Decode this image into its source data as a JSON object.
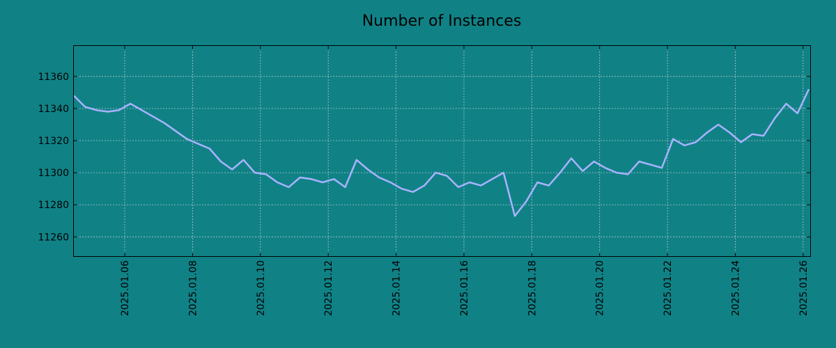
{
  "chart_data": {
    "type": "line",
    "title": "Number of Instances",
    "xlabel": "",
    "ylabel": "",
    "x_ticks": [
      "2025.01.06",
      "2025.01.08",
      "2025.01.10",
      "2025.01.12",
      "2025.01.14",
      "2025.01.16",
      "2025.01.18",
      "2025.01.20",
      "2025.01.22",
      "2025.01.24",
      "2025.01.26"
    ],
    "y_ticks": [
      11260,
      11280,
      11300,
      11320,
      11340,
      11360
    ],
    "xlim": [
      "2025-01-04 12:00",
      "2025-01-26 05:00"
    ],
    "ylim": [
      11248,
      11379
    ],
    "grid": true,
    "legend": "none",
    "colors": {
      "background": "#108286",
      "line": "#a9b3ff"
    },
    "series": [
      {
        "x": [
          "2025-01-04 12:00",
          "2025-01-04 20:00",
          "2025-01-05 04:00",
          "2025-01-05 12:00",
          "2025-01-05 20:00",
          "2025-01-06 04:00",
          "2025-01-06 12:00",
          "2025-01-06 20:00",
          "2025-01-07 04:00",
          "2025-01-07 12:00",
          "2025-01-07 20:00",
          "2025-01-08 04:00",
          "2025-01-08 12:00",
          "2025-01-08 20:00",
          "2025-01-09 04:00",
          "2025-01-09 12:00",
          "2025-01-09 20:00",
          "2025-01-10 04:00",
          "2025-01-10 12:00",
          "2025-01-10 20:00",
          "2025-01-11 04:00",
          "2025-01-11 12:00",
          "2025-01-11 20:00",
          "2025-01-12 04:00",
          "2025-01-12 12:00",
          "2025-01-12 20:00",
          "2025-01-13 04:00",
          "2025-01-13 12:00",
          "2025-01-13 20:00",
          "2025-01-14 04:00",
          "2025-01-14 12:00",
          "2025-01-14 20:00",
          "2025-01-15 04:00",
          "2025-01-15 12:00",
          "2025-01-15 20:00",
          "2025-01-16 04:00",
          "2025-01-16 12:00",
          "2025-01-16 20:00",
          "2025-01-17 04:00",
          "2025-01-17 12:00",
          "2025-01-17 20:00",
          "2025-01-18 04:00",
          "2025-01-18 12:00",
          "2025-01-18 20:00",
          "2025-01-19 04:00",
          "2025-01-19 12:00",
          "2025-01-19 20:00",
          "2025-01-20 04:00",
          "2025-01-20 12:00",
          "2025-01-20 20:00",
          "2025-01-21 04:00",
          "2025-01-21 12:00",
          "2025-01-21 20:00",
          "2025-01-22 04:00",
          "2025-01-22 12:00",
          "2025-01-22 20:00",
          "2025-01-23 04:00",
          "2025-01-23 12:00",
          "2025-01-23 20:00",
          "2025-01-24 04:00",
          "2025-01-24 12:00",
          "2025-01-24 20:00",
          "2025-01-25 04:00",
          "2025-01-25 12:00",
          "2025-01-25 20:00",
          "2025-01-26 04:00"
        ],
        "values": [
          11348,
          11341,
          11339,
          11338,
          11339,
          11343,
          11339,
          11335,
          11331,
          11326,
          11321,
          11318,
          11315,
          11307,
          11302,
          11308,
          11300,
          11299,
          11294,
          11291,
          11297,
          11296,
          11294,
          11296,
          11291,
          11308,
          11302,
          11297,
          11294,
          11290,
          11288,
          11292,
          11300,
          11298,
          11291,
          11294,
          11292,
          11296,
          11300,
          11273,
          11282,
          11294,
          11292,
          11300,
          11309,
          11301,
          11307,
          11303,
          11300,
          11299,
          11307,
          11305,
          11303,
          11321,
          11317,
          11319,
          11325,
          11330,
          11325,
          11319,
          11324,
          11323,
          11334,
          11343,
          11337,
          11352
        ]
      }
    ]
  }
}
